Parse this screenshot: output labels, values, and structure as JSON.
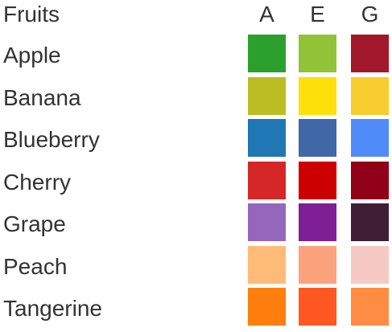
{
  "chart_data": {
    "type": "table",
    "header": "Fruits",
    "columns": [
      "A",
      "E",
      "G"
    ],
    "rows": [
      {
        "name": "Apple",
        "colors": [
          "#2ca02c",
          "#92c336",
          "#a0182a"
        ]
      },
      {
        "name": "Banana",
        "colors": [
          "#bcbd22",
          "#fde009",
          "#f8cd2f"
        ]
      },
      {
        "name": "Blueberry",
        "colors": [
          "#1f77b4",
          "#4168a6",
          "#4f8cf8"
        ]
      },
      {
        "name": "Cherry",
        "colors": [
          "#d62728",
          "#cd0000",
          "#900018"
        ]
      },
      {
        "name": "Grape",
        "colors": [
          "#9467bd",
          "#7f1f95",
          "#3f1e36"
        ]
      },
      {
        "name": "Peach",
        "colors": [
          "#ffbb78",
          "#fca37e",
          "#f7c9c4"
        ]
      },
      {
        "name": "Tangerine",
        "colors": [
          "#ff7f0e",
          "#ff5722",
          "#ff8c42"
        ]
      }
    ]
  }
}
